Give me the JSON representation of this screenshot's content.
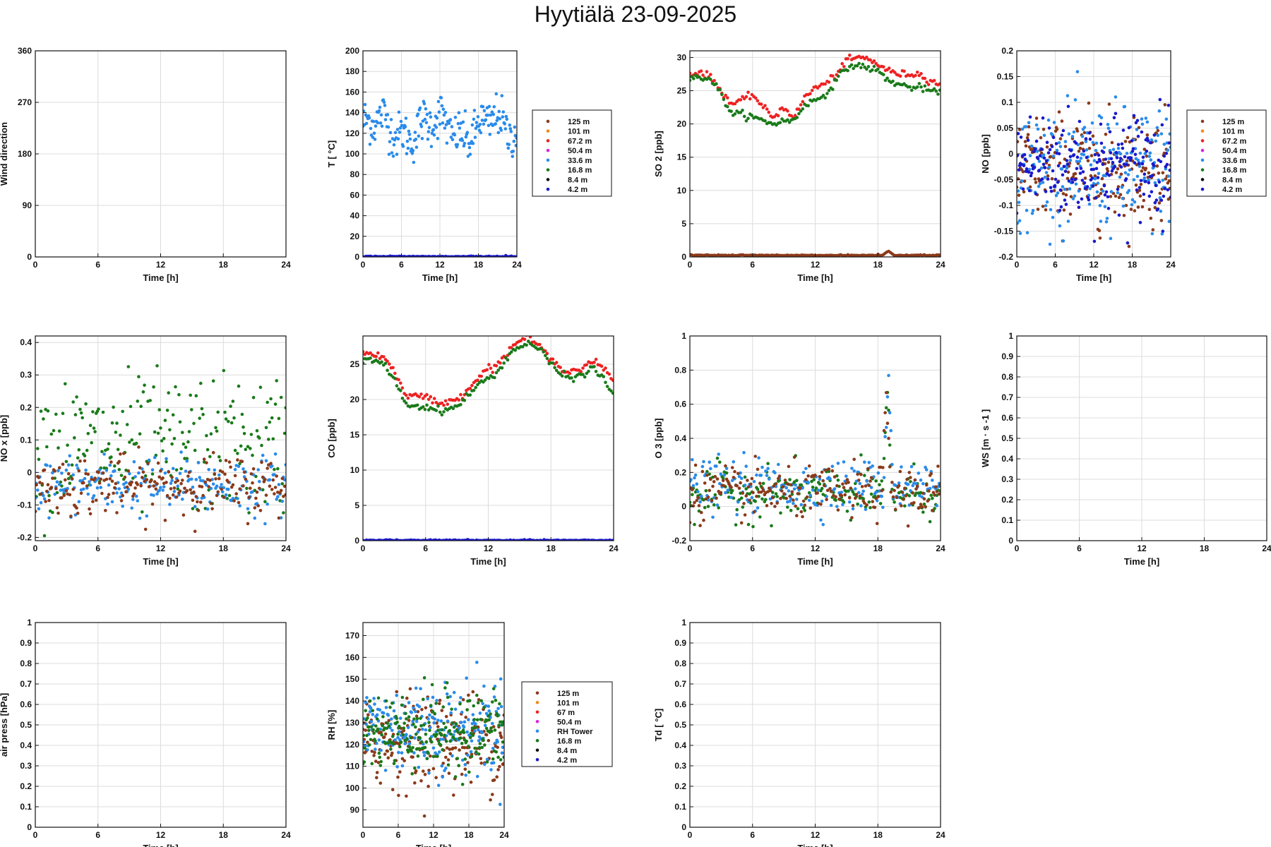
{
  "page": {
    "title": "Hyytiälä 23-09-2025"
  },
  "chart_data": [
    {
      "id": "wind",
      "type": "scatter",
      "xlabel": "Time [h]",
      "ylabel": "Wind direction",
      "xlim": [
        0,
        24
      ],
      "ylim": [
        0,
        360
      ],
      "xticks": [
        0,
        6,
        12,
        18,
        24
      ],
      "yticks": [
        0,
        90,
        180,
        270,
        360
      ],
      "grid": true,
      "series": []
    },
    {
      "id": "temp",
      "type": "scatter",
      "xlabel": "Time [h]",
      "ylabel": "T [  °C]",
      "xlim": [
        0,
        24
      ],
      "ylim": [
        0,
        200
      ],
      "xticks": [
        0,
        6,
        12,
        18,
        24
      ],
      "yticks": [
        0,
        20,
        40,
        60,
        80,
        100,
        120,
        140,
        160,
        180,
        200
      ],
      "grid": true,
      "legend": [
        "125 m",
        "101 m",
        "67.2 m",
        "50.4 m",
        "33.6 m",
        "16.8 m",
        "8.4 m",
        "4.2 m"
      ],
      "legend_colors": [
        "#8b3a1a",
        "#f28a1a",
        "#ee2222",
        "#e020e0",
        "#2a8bea",
        "#1a7a1a",
        "#111111",
        "#1a1acc"
      ],
      "legend_placement": "right",
      "series": [
        {
          "color": "#2a8bea",
          "kind": "noisy",
          "base": "125 + 12*sin(0.9*t) + 8*sin(2.3*t+1) - 6*(t>12)*sin((t-12)*0.8)",
          "x": [
            0,
            24
          ],
          "noise_range": [
            90,
            160
          ]
        },
        {
          "color": "#1a1acc",
          "kind": "flat",
          "y": 0
        }
      ]
    },
    {
      "id": "so2",
      "type": "scatter",
      "xlabel": "Time [h]",
      "ylabel": "SO 2 [ppb]",
      "xlim": [
        0,
        24
      ],
      "ylim": [
        0,
        31
      ],
      "xticks": [
        0,
        6,
        12,
        18,
        24
      ],
      "yticks": [
        0,
        5,
        10,
        15,
        20,
        25,
        30
      ],
      "grid": true,
      "series": [
        {
          "color": "#ee2222",
          "kind": "curve",
          "x": [
            0,
            1,
            2,
            3,
            4,
            5,
            6,
            7,
            8,
            9,
            10,
            11,
            12,
            13,
            14,
            15,
            16,
            17,
            18,
            19,
            20,
            21,
            22,
            23,
            24
          ],
          "y": [
            27.5,
            27.8,
            27,
            25,
            23,
            23.5,
            24.5,
            22.5,
            21,
            22.5,
            21,
            24,
            25.5,
            26,
            27.5,
            29.5,
            30,
            29.8,
            29,
            28,
            27.5,
            27.5,
            27.5,
            26.5,
            26
          ]
        },
        {
          "color": "#1a7a1a",
          "kind": "curve",
          "x": [
            0,
            1,
            2,
            3,
            4,
            5,
            6,
            7,
            8,
            9,
            10,
            11,
            12,
            13,
            14,
            15,
            16,
            17,
            18,
            19,
            20,
            21,
            22,
            23,
            24
          ],
          "y": [
            26.8,
            27,
            26.8,
            24.5,
            21.5,
            21.5,
            21,
            20.5,
            20,
            20.5,
            20.5,
            23,
            23.5,
            24.5,
            26.5,
            28.5,
            28.8,
            28.5,
            28,
            26.5,
            26,
            25.5,
            25.5,
            25,
            24.5
          ]
        },
        {
          "color": "#8b3a1a",
          "kind": "flat",
          "y": 0.2,
          "bump_at": 19,
          "bump_value": 0.9
        }
      ]
    },
    {
      "id": "no",
      "type": "scatter",
      "xlabel": "Time [h]",
      "ylabel": "NO [ppb]",
      "xlim": [
        0,
        24
      ],
      "ylim": [
        -0.2,
        0.2
      ],
      "xticks": [
        0,
        6,
        12,
        18,
        24
      ],
      "yticks": [
        -0.2,
        -0.15,
        -0.1,
        -0.05,
        0,
        0.05,
        0.1,
        0.15,
        0.2
      ],
      "grid": true,
      "legend": [
        "125 m",
        "101 m",
        "67.2 m",
        "50.4 m",
        "33.6 m",
        "16.8 m",
        "8.4 m",
        "4.2 m"
      ],
      "legend_colors": [
        "#8b3a1a",
        "#f28a1a",
        "#ee2222",
        "#e020e0",
        "#2a8bea",
        "#1a7a1a",
        "#111111",
        "#1a1acc"
      ],
      "legend_placement": "right",
      "series": [
        {
          "color": "#8b3a1a",
          "kind": "noisy",
          "center": -0.03,
          "spread": 0.07,
          "x": [
            0,
            24
          ]
        },
        {
          "color": "#2a8bea",
          "kind": "noisy",
          "center": -0.03,
          "spread": 0.08,
          "x": [
            0,
            24
          ]
        },
        {
          "color": "#1a1acc",
          "kind": "noisy",
          "center": -0.02,
          "spread": 0.07,
          "x": [
            0,
            24
          ]
        }
      ]
    },
    {
      "id": "nox",
      "type": "scatter",
      "xlabel": "Time [h]",
      "ylabel": "NO x [ppb]",
      "xlim": [
        0,
        24
      ],
      "ylim": [
        -0.21,
        0.42
      ],
      "xticks": [
        0,
        6,
        12,
        18,
        24
      ],
      "yticks": [
        -0.2,
        -0.1,
        0,
        0.1,
        0.2,
        0.3,
        0.4
      ],
      "grid": true,
      "series": [
        {
          "color": "#1a7a1a",
          "kind": "noisy",
          "center": 0.08,
          "spread": 0.14,
          "x": [
            0,
            24
          ]
        },
        {
          "color": "#2a8bea",
          "kind": "noisy",
          "center": -0.04,
          "spread": 0.06,
          "x": [
            0,
            24
          ]
        },
        {
          "color": "#8b3a1a",
          "kind": "noisy",
          "center": -0.04,
          "spread": 0.06,
          "x": [
            0,
            24
          ]
        }
      ]
    },
    {
      "id": "co",
      "type": "scatter",
      "xlabel": "Time [h]",
      "ylabel": "CO [ppb]",
      "xlim": [
        0,
        24
      ],
      "ylim": [
        0,
        29
      ],
      "xticks": [
        0,
        6,
        12,
        18,
        24
      ],
      "yticks": [
        0,
        5,
        10,
        15,
        20,
        25
      ],
      "grid": true,
      "series": [
        {
          "color": "#ee2222",
          "kind": "curve",
          "x": [
            0,
            1,
            2,
            3,
            4,
            5,
            6,
            7,
            8,
            9,
            10,
            11,
            12,
            13,
            14,
            15,
            16,
            17,
            18,
            19,
            20,
            21,
            22,
            23,
            24
          ],
          "y": [
            26.5,
            26.5,
            26,
            24,
            21,
            20.5,
            20.5,
            19.5,
            19.5,
            20,
            21.5,
            23,
            24.5,
            25,
            27,
            28.5,
            28.5,
            27.5,
            25.5,
            24.5,
            24,
            24.5,
            25.5,
            24.5,
            22.5
          ]
        },
        {
          "color": "#1a7a1a",
          "kind": "curve",
          "x": [
            0,
            1,
            2,
            3,
            4,
            5,
            6,
            7,
            8,
            9,
            10,
            11,
            12,
            13,
            14,
            15,
            16,
            17,
            18,
            19,
            20,
            21,
            22,
            23,
            24
          ],
          "y": [
            25.5,
            25.5,
            25,
            23,
            19.5,
            19,
            19,
            18.5,
            18.5,
            19,
            20.5,
            22,
            23,
            24,
            26.5,
            27.5,
            28,
            27,
            25,
            23.5,
            23,
            23.5,
            24.5,
            23,
            20.5
          ]
        },
        {
          "color": "#1a1acc",
          "kind": "flat",
          "y": 0
        }
      ]
    },
    {
      "id": "o3",
      "type": "scatter",
      "xlabel": "Time [h]",
      "ylabel": "O 3 [ppb]",
      "xlim": [
        0,
        24
      ],
      "ylim": [
        -0.2,
        1
      ],
      "xticks": [
        0,
        6,
        12,
        18,
        24
      ],
      "yticks": [
        -0.2,
        0,
        0.2,
        0.4,
        0.6,
        0.8,
        1
      ],
      "grid": true,
      "series": [
        {
          "color": "#1a7a1a",
          "kind": "noisy",
          "center": 0.08,
          "spread": 0.1,
          "x": [
            0,
            24
          ],
          "spike_at": 18.9,
          "spike_value": 0.7
        },
        {
          "color": "#2a8bea",
          "kind": "noisy",
          "center": 0.12,
          "spread": 0.1,
          "x": [
            0,
            24
          ],
          "spike_at": 19.0,
          "spike_value": 0.8
        },
        {
          "color": "#8b3a1a",
          "kind": "noisy",
          "center": 0.08,
          "spread": 0.1,
          "x": [
            0,
            24
          ],
          "spike_at": 18.8,
          "spike_value": 0.65
        }
      ]
    },
    {
      "id": "ws",
      "type": "scatter",
      "xlabel": "Time [h]",
      "ylabel": "WS [m  · s -1 ]",
      "xlim": [
        0,
        24
      ],
      "ylim": [
        0,
        1
      ],
      "xticks": [
        0,
        6,
        12,
        18,
        24
      ],
      "yticks": [
        0,
        0.1,
        0.2,
        0.3,
        0.4,
        0.5,
        0.6,
        0.7,
        0.8,
        0.9,
        1
      ],
      "grid": true,
      "series": []
    },
    {
      "id": "press",
      "type": "scatter",
      "xlabel": "Time [h]",
      "ylabel": "air press [hPa]",
      "xlim": [
        0,
        24
      ],
      "ylim": [
        0,
        1
      ],
      "xticks": [
        0,
        6,
        12,
        18,
        24
      ],
      "yticks": [
        0,
        0.1,
        0.2,
        0.3,
        0.4,
        0.5,
        0.6,
        0.7,
        0.8,
        0.9,
        1
      ],
      "grid": true,
      "series": []
    },
    {
      "id": "rh",
      "type": "scatter",
      "xlabel": "Time [h]",
      "ylabel": "RH [%]",
      "xlim": [
        0,
        24
      ],
      "ylim": [
        82,
        176
      ],
      "xticks": [
        0,
        6,
        12,
        18,
        24
      ],
      "yticks": [
        90,
        100,
        110,
        120,
        130,
        140,
        150,
        160,
        170
      ],
      "grid": true,
      "legend": [
        "125 m",
        "101 m",
        "67 m",
        "50.4 m",
        "RH Tower",
        "16.8 m",
        "8.4 m",
        "4.2 m"
      ],
      "legend_colors": [
        "#8b3a1a",
        "#f28a1a",
        "#ee2222",
        "#e020e0",
        "#2a8bea",
        "#1a7a1a",
        "#111111",
        "#1a1acc"
      ],
      "legend_placement": "right",
      "series": [
        {
          "color": "#8b3a1a",
          "kind": "noisy",
          "center": 122,
          "spread": 14,
          "x": [
            0,
            24
          ]
        },
        {
          "color": "#2a8bea",
          "kind": "noisy",
          "center": 128,
          "spread": 14,
          "x": [
            0,
            24
          ]
        },
        {
          "color": "#1a7a1a",
          "kind": "noisy",
          "center": 126,
          "spread": 12,
          "x": [
            0,
            24
          ]
        }
      ]
    },
    {
      "id": "td",
      "type": "scatter",
      "xlabel": "Time [h]",
      "ylabel": "Td [  °C]",
      "xlim": [
        0,
        24
      ],
      "ylim": [
        0,
        1
      ],
      "xticks": [
        0,
        6,
        12,
        18,
        24
      ],
      "yticks": [
        0,
        0.1,
        0.2,
        0.3,
        0.4,
        0.5,
        0.6,
        0.7,
        0.8,
        0.9,
        1
      ],
      "grid": true,
      "series": []
    }
  ]
}
